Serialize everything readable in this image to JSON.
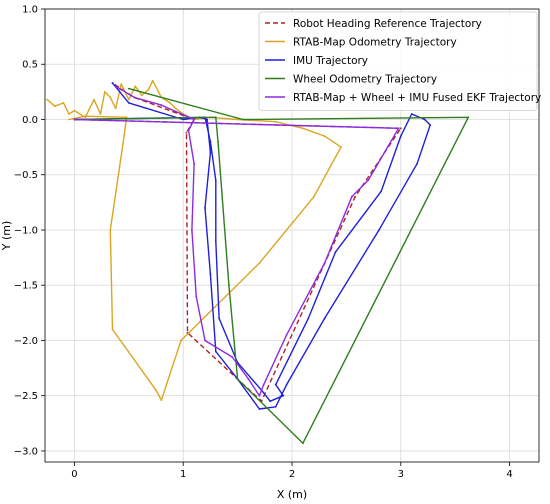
{
  "chart_data": {
    "type": "line",
    "xlabel": "X (m)",
    "ylabel": "Y (m)",
    "xlim": [
      -0.27,
      4.27
    ],
    "ylim": [
      -3.1,
      1.0
    ],
    "xticks": [
      0,
      1,
      2,
      3,
      4
    ],
    "yticks": [
      1.0,
      0.5,
      0.0,
      -0.5,
      -1.0,
      -1.5,
      -2.0,
      -2.5,
      -3.0
    ],
    "tick_labels_x": [
      "0",
      "1",
      "2",
      "3",
      "4"
    ],
    "tick_labels_y": [
      "1.0",
      "0.5",
      "0.0",
      "−0.5",
      "−1.0",
      "−1.5",
      "−2.0",
      "−2.5",
      "−3.0"
    ],
    "grid": true,
    "legend_position": "top-right",
    "series": [
      {
        "name": "Robot Heading Reference Trajectory",
        "color": "#b22222",
        "dash": true,
        "points": [
          [
            0.0,
            0.0
          ],
          [
            3.0,
            -0.08
          ],
          [
            2.58,
            -0.7
          ],
          [
            1.72,
            -2.55
          ],
          [
            1.04,
            -1.93
          ],
          [
            1.03,
            -0.12
          ],
          [
            1.1,
            0.0
          ],
          [
            0.55,
            0.2
          ],
          [
            0.35,
            0.33
          ]
        ]
      },
      {
        "name": "RTAB-Map Odometry Trajectory",
        "color": "#daa520",
        "dash": false,
        "points": [
          [
            -0.25,
            0.18
          ],
          [
            -0.18,
            0.12
          ],
          [
            -0.1,
            0.15
          ],
          [
            -0.05,
            0.05
          ],
          [
            0.0,
            0.08
          ],
          [
            0.1,
            0.02
          ],
          [
            0.18,
            0.18
          ],
          [
            0.24,
            0.05
          ],
          [
            0.28,
            0.25
          ],
          [
            0.33,
            0.2
          ],
          [
            0.38,
            0.1
          ],
          [
            0.43,
            0.32
          ],
          [
            0.5,
            0.18
          ],
          [
            0.56,
            0.3
          ],
          [
            0.62,
            0.22
          ],
          [
            0.68,
            0.27
          ],
          [
            0.72,
            0.35
          ],
          [
            0.8,
            0.2
          ],
          [
            0.88,
            0.15
          ],
          [
            0.93,
            0.1
          ],
          [
            1.0,
            0.05
          ],
          [
            1.1,
            0.0
          ],
          [
            1.25,
            0.02
          ],
          [
            1.5,
            0.0
          ],
          [
            1.85,
            -0.02
          ],
          [
            2.1,
            -0.08
          ],
          [
            2.3,
            -0.15
          ],
          [
            2.45,
            -0.25
          ],
          [
            2.2,
            -0.7
          ],
          [
            1.7,
            -1.3
          ],
          [
            0.98,
            -2.0
          ],
          [
            0.8,
            -2.54
          ],
          [
            0.75,
            -2.45
          ],
          [
            0.35,
            -1.9
          ],
          [
            0.33,
            -1.0
          ],
          [
            0.45,
            -0.2
          ],
          [
            0.48,
            0.02
          ],
          [
            0.1,
            0.03
          ],
          [
            -0.05,
            0.0
          ]
        ]
      },
      {
        "name": "IMU Trajectory",
        "color": "#1f1fdc",
        "dash": false,
        "points": [
          [
            0.0,
            0.0
          ],
          [
            1.2,
            0.02
          ],
          [
            1.25,
            -0.2
          ],
          [
            1.3,
            -0.55
          ],
          [
            1.3,
            -1.1
          ],
          [
            1.33,
            -1.8
          ],
          [
            1.5,
            -2.2
          ],
          [
            1.72,
            -2.45
          ],
          [
            1.8,
            -2.55
          ],
          [
            1.92,
            -2.5
          ],
          [
            1.85,
            -2.4
          ],
          [
            2.15,
            -1.8
          ],
          [
            2.4,
            -1.2
          ],
          [
            2.82,
            -0.65
          ],
          [
            3.0,
            -0.15
          ],
          [
            3.1,
            0.05
          ],
          [
            3.22,
            0.0
          ],
          [
            3.27,
            -0.05
          ],
          [
            3.15,
            -0.4
          ],
          [
            2.8,
            -1.0
          ],
          [
            2.3,
            -1.8
          ],
          [
            1.95,
            -2.4
          ],
          [
            1.85,
            -2.6
          ],
          [
            1.7,
            -2.62
          ],
          [
            1.5,
            -2.35
          ],
          [
            1.3,
            -2.1
          ],
          [
            1.25,
            -1.4
          ],
          [
            1.2,
            -0.8
          ],
          [
            1.25,
            -0.3
          ],
          [
            1.22,
            0.0
          ],
          [
            1.15,
            0.02
          ],
          [
            1.0,
            0.0
          ],
          [
            0.5,
            0.15
          ],
          [
            0.35,
            0.33
          ]
        ]
      },
      {
        "name": "Wheel Odometry Trajectory",
        "color": "#2e7d1e",
        "dash": false,
        "points": [
          [
            0.0,
            0.0
          ],
          [
            1.3,
            0.02
          ],
          [
            1.32,
            -0.2
          ],
          [
            1.42,
            -1.5
          ],
          [
            1.5,
            -2.35
          ],
          [
            2.1,
            -2.93
          ],
          [
            3.62,
            0.02
          ],
          [
            1.55,
            0.0
          ],
          [
            0.5,
            0.28
          ]
        ]
      },
      {
        "name": "RTAB-Map + Wheel + IMU Fused EKF Trajectory",
        "color": "#8a2be2",
        "dash": false,
        "points": [
          [
            0.0,
            0.0
          ],
          [
            2.98,
            -0.08
          ],
          [
            2.7,
            -0.55
          ],
          [
            2.55,
            -0.7
          ],
          [
            2.3,
            -1.3
          ],
          [
            1.95,
            -1.95
          ],
          [
            1.74,
            -2.4
          ],
          [
            1.7,
            -2.5
          ],
          [
            1.6,
            -2.35
          ],
          [
            1.45,
            -2.15
          ],
          [
            1.2,
            -2.0
          ],
          [
            1.12,
            -1.6
          ],
          [
            1.08,
            -1.0
          ],
          [
            1.1,
            -0.4
          ],
          [
            1.05,
            -0.1
          ],
          [
            1.1,
            0.0
          ],
          [
            0.8,
            0.13
          ],
          [
            0.55,
            0.2
          ],
          [
            0.38,
            0.3
          ]
        ]
      }
    ]
  }
}
